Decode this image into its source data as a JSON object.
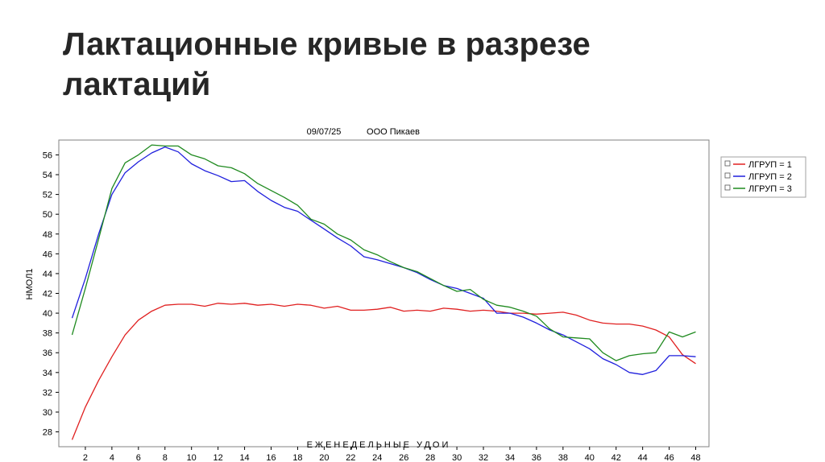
{
  "slide": {
    "title_line1": "Лактационные кривые в разрезе",
    "title_line2": "лактаций"
  },
  "chart_data": {
    "type": "line",
    "header_date": "09/07/25",
    "header_org": "ООО Пикаев",
    "xlabel": "ЕЖЕНЕДЕЛЬНЫЕ УДОИ",
    "ylabel": "НМОЛ1",
    "xlim": [
      0,
      49
    ],
    "ylim": [
      26.5,
      57.5
    ],
    "x_ticks": [
      2,
      4,
      6,
      8,
      10,
      12,
      14,
      16,
      18,
      20,
      22,
      24,
      26,
      28,
      30,
      32,
      34,
      36,
      38,
      40,
      42,
      44,
      46,
      48
    ],
    "y_ticks": [
      28,
      30,
      32,
      34,
      36,
      38,
      40,
      42,
      44,
      46,
      48,
      50,
      52,
      54,
      56
    ],
    "grid": false,
    "legend_position": "right",
    "x": [
      1,
      2,
      3,
      4,
      5,
      6,
      7,
      8,
      9,
      10,
      11,
      12,
      13,
      14,
      15,
      16,
      17,
      18,
      19,
      20,
      21,
      22,
      23,
      24,
      25,
      26,
      27,
      28,
      29,
      30,
      31,
      32,
      33,
      34,
      35,
      36,
      37,
      38,
      39,
      40,
      41,
      42,
      43,
      44,
      45,
      46,
      47,
      48
    ],
    "series": [
      {
        "name": "ЛГРУП = 1",
        "color": "#e02020",
        "values": [
          27.2,
          30.5,
          33.2,
          35.6,
          37.8,
          39.3,
          40.2,
          40.8,
          40.9,
          40.9,
          40.7,
          41.0,
          40.9,
          41.0,
          40.8,
          40.9,
          40.7,
          40.9,
          40.8,
          40.5,
          40.7,
          40.3,
          40.3,
          40.4,
          40.6,
          40.2,
          40.3,
          40.2,
          40.5,
          40.4,
          40.2,
          40.3,
          40.2,
          40.0,
          40.0,
          39.9,
          40.0,
          40.1,
          39.8,
          39.3,
          39.0,
          38.9,
          38.9,
          38.7,
          38.3,
          37.6,
          35.8,
          34.9
        ]
      },
      {
        "name": "ЛГРУП = 2",
        "color": "#1f1fdd",
        "values": [
          39.5,
          43.5,
          48.0,
          52.0,
          54.2,
          55.3,
          56.2,
          56.8,
          56.3,
          55.1,
          54.4,
          53.9,
          53.3,
          53.4,
          52.3,
          51.4,
          50.7,
          50.3,
          49.4,
          48.5,
          47.6,
          46.8,
          45.7,
          45.4,
          45.0,
          44.6,
          44.1,
          43.4,
          42.8,
          42.5,
          42.0,
          41.5,
          40.0,
          40.0,
          39.6,
          39.0,
          38.3,
          37.8,
          37.1,
          36.4,
          35.4,
          34.8,
          34.0,
          33.8,
          34.2,
          35.7,
          35.7,
          35.6
        ]
      },
      {
        "name": "ЛГРУП = 3",
        "color": "#1f8a1f",
        "values": [
          37.8,
          42.5,
          47.5,
          52.6,
          55.2,
          56.0,
          57.0,
          56.9,
          56.9,
          56.0,
          55.6,
          54.9,
          54.7,
          54.1,
          53.1,
          52.4,
          51.7,
          50.9,
          49.5,
          49.0,
          48.0,
          47.4,
          46.4,
          45.9,
          45.2,
          44.6,
          44.2,
          43.5,
          42.8,
          42.2,
          42.4,
          41.4,
          40.8,
          40.6,
          40.2,
          39.7,
          38.4,
          37.6,
          37.5,
          37.4,
          36.0,
          35.2,
          35.7,
          35.9,
          36.0,
          38.1,
          37.6,
          38.1
        ]
      }
    ]
  }
}
